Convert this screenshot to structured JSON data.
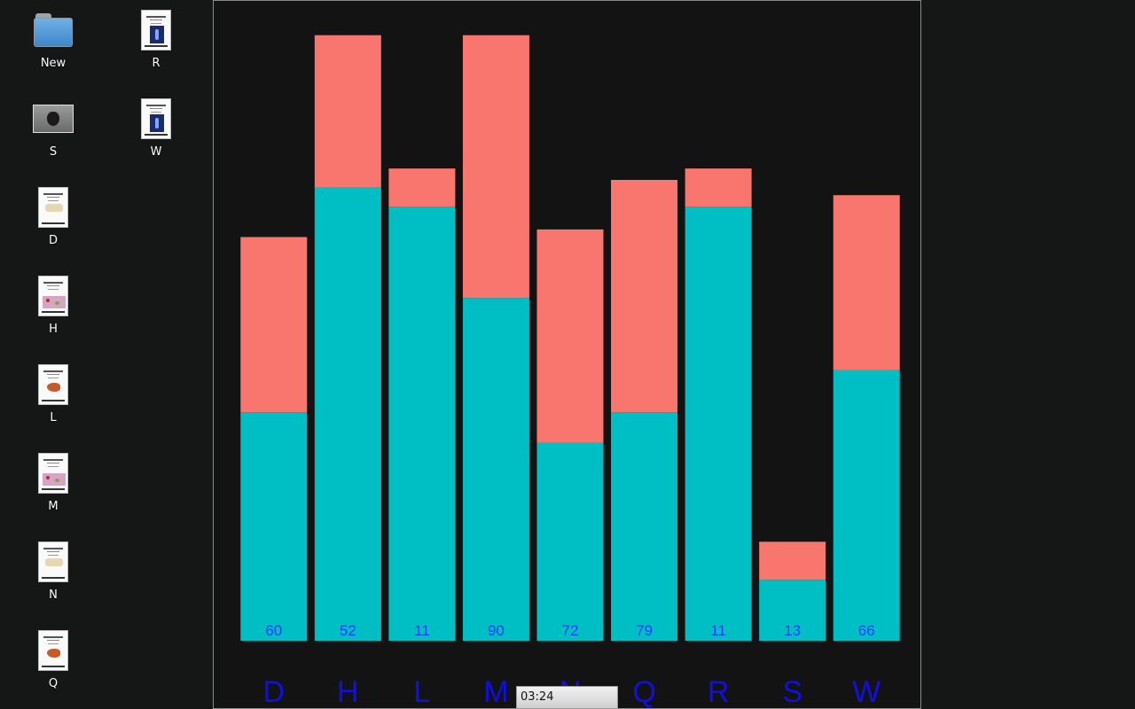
{
  "desktop": {
    "icons": [
      {
        "label": "New",
        "kind": "folder",
        "icon": "folder-icon"
      },
      {
        "label": "R",
        "kind": "doc-blue",
        "icon": "pdf-document-icon"
      },
      {
        "label": "S",
        "kind": "photo",
        "icon": "image-file-icon"
      },
      {
        "label": "W",
        "kind": "doc-blue",
        "icon": "pdf-document-icon"
      },
      {
        "label": "D",
        "kind": "doc-map",
        "icon": "pdf-document-icon"
      },
      {
        "label": "H",
        "kind": "doc-cells",
        "icon": "pdf-document-icon"
      },
      {
        "label": "L",
        "kind": "doc-liver",
        "icon": "pdf-document-icon"
      },
      {
        "label": "M",
        "kind": "doc-cells",
        "icon": "pdf-document-icon"
      },
      {
        "label": "N",
        "kind": "doc-map",
        "icon": "pdf-document-icon"
      },
      {
        "label": "Q",
        "kind": "doc-liver",
        "icon": "pdf-document-icon"
      }
    ]
  },
  "taskbar": {
    "clock": "03:24"
  },
  "colors": {
    "lower": "#00bfc4",
    "upper": "#f8766d",
    "value_label": "#1f3fff",
    "category_label": "#1010e0",
    "background": "#131313"
  },
  "chart_data": {
    "type": "bar",
    "stacked": true,
    "categories": [
      "D",
      "H",
      "L",
      "M",
      "N",
      "Q",
      "R",
      "S",
      "W"
    ],
    "series": [
      {
        "values": [
          60,
          119,
          114,
          90,
          52,
          60,
          114,
          16,
          71
        ]
      },
      {
        "values": [
          46,
          40,
          10,
          69,
          56,
          61,
          10,
          10,
          46
        ]
      }
    ],
    "value_labels": [
      "60",
      "52",
      "11",
      "90",
      "72",
      "79",
      "11",
      "13",
      "66"
    ],
    "ylim": [
      0,
      160
    ],
    "grid": false,
    "title": "",
    "xlabel": "",
    "ylabel": ""
  }
}
